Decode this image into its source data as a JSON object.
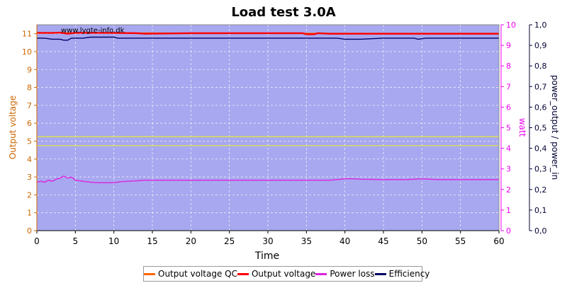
{
  "chart_data": {
    "type": "line",
    "title": "Load test 3.0A",
    "watermark": "www.lygte-info.dk",
    "xlabel": "Time",
    "xlim": [
      0,
      60
    ],
    "x_ticks": [
      0,
      5,
      10,
      15,
      20,
      25,
      30,
      35,
      40,
      45,
      50,
      55,
      60
    ],
    "y_left": {
      "label": "Output voltage",
      "lim": [
        0,
        11.5
      ],
      "ticks": [
        0,
        1,
        2,
        3,
        4,
        5,
        6,
        7,
        8,
        9,
        10,
        11
      ],
      "color": "#cc6600"
    },
    "y_right1": {
      "label": "watt",
      "lim": [
        0,
        10
      ],
      "ticks": [
        0,
        1,
        2,
        3,
        4,
        5,
        6,
        7,
        8,
        9,
        10
      ],
      "color": "#ee00ee"
    },
    "y_right2": {
      "label": "power_output / power_in",
      "lim": [
        0,
        1.0
      ],
      "ticks": [
        "0,0",
        "0,1",
        "0,2",
        "0,3",
        "0,4",
        "0,5",
        "0,6",
        "0,7",
        "0,8",
        "0,9",
        "1,0"
      ],
      "color": "#000033"
    },
    "reference_lines_left": [
      4.75,
      5.25
    ],
    "reference_line_color": "#e8e838",
    "grid": true,
    "plot_background": "#a8a8f0",
    "legend_position": "bottom",
    "series": [
      {
        "name": "Output voltage QC",
        "color": "#ff6600",
        "axis": "left",
        "x": [
          0,
          5,
          10,
          15,
          20,
          25,
          30,
          35,
          40,
          45,
          50,
          55,
          60
        ],
        "y": [
          11.05,
          11.05,
          11.04,
          11.04,
          11.03,
          11.03,
          11.03,
          11.02,
          11.02,
          11.02,
          11.02,
          11.02,
          11.02
        ]
      },
      {
        "name": "Output voltage",
        "color": "#ff0000",
        "axis": "left",
        "x": [
          0,
          2,
          3,
          4,
          5,
          10,
          13,
          14,
          20,
          30,
          34.5,
          35,
          36,
          36.5,
          38,
          40,
          50,
          60
        ],
        "y": [
          11.05,
          11.04,
          11.06,
          11.0,
          11.05,
          11.04,
          11.03,
          11.0,
          11.03,
          11.03,
          11.03,
          10.97,
          10.97,
          11.03,
          11.0,
          11.0,
          11.0,
          11.0
        ]
      },
      {
        "name": "Power loss",
        "color": "#dd22dd",
        "axis": "right1",
        "x": [
          0,
          0.5,
          1,
          1.5,
          2,
          2.5,
          3,
          3.5,
          4,
          4.5,
          5,
          6,
          7,
          8,
          9,
          10,
          11,
          12,
          13,
          14,
          15,
          20,
          25,
          30,
          35,
          38,
          39,
          40,
          41,
          42,
          45,
          48,
          49,
          50,
          51,
          52,
          55,
          60
        ],
        "y": [
          2.35,
          2.4,
          2.35,
          2.45,
          2.4,
          2.5,
          2.55,
          2.65,
          2.55,
          2.6,
          2.45,
          2.4,
          2.35,
          2.33,
          2.33,
          2.33,
          2.38,
          2.4,
          2.42,
          2.45,
          2.45,
          2.45,
          2.45,
          2.45,
          2.45,
          2.45,
          2.48,
          2.52,
          2.52,
          2.5,
          2.48,
          2.48,
          2.5,
          2.52,
          2.5,
          2.48,
          2.48,
          2.48
        ]
      },
      {
        "name": "Efficiency",
        "color": "#000066",
        "axis": "right2",
        "x": [
          0,
          1,
          2,
          3,
          3.5,
          4,
          4.5,
          5,
          6,
          7,
          8,
          10,
          10.5,
          15,
          20,
          25,
          30,
          35,
          39,
          40,
          42,
          45,
          49,
          49.5,
          50.5,
          55,
          60
        ],
        "y": [
          0.935,
          0.935,
          0.93,
          0.93,
          0.925,
          0.925,
          0.935,
          0.935,
          0.935,
          0.94,
          0.94,
          0.94,
          0.935,
          0.935,
          0.935,
          0.935,
          0.935,
          0.935,
          0.935,
          0.93,
          0.93,
          0.935,
          0.935,
          0.93,
          0.935,
          0.935,
          0.935
        ]
      }
    ]
  }
}
